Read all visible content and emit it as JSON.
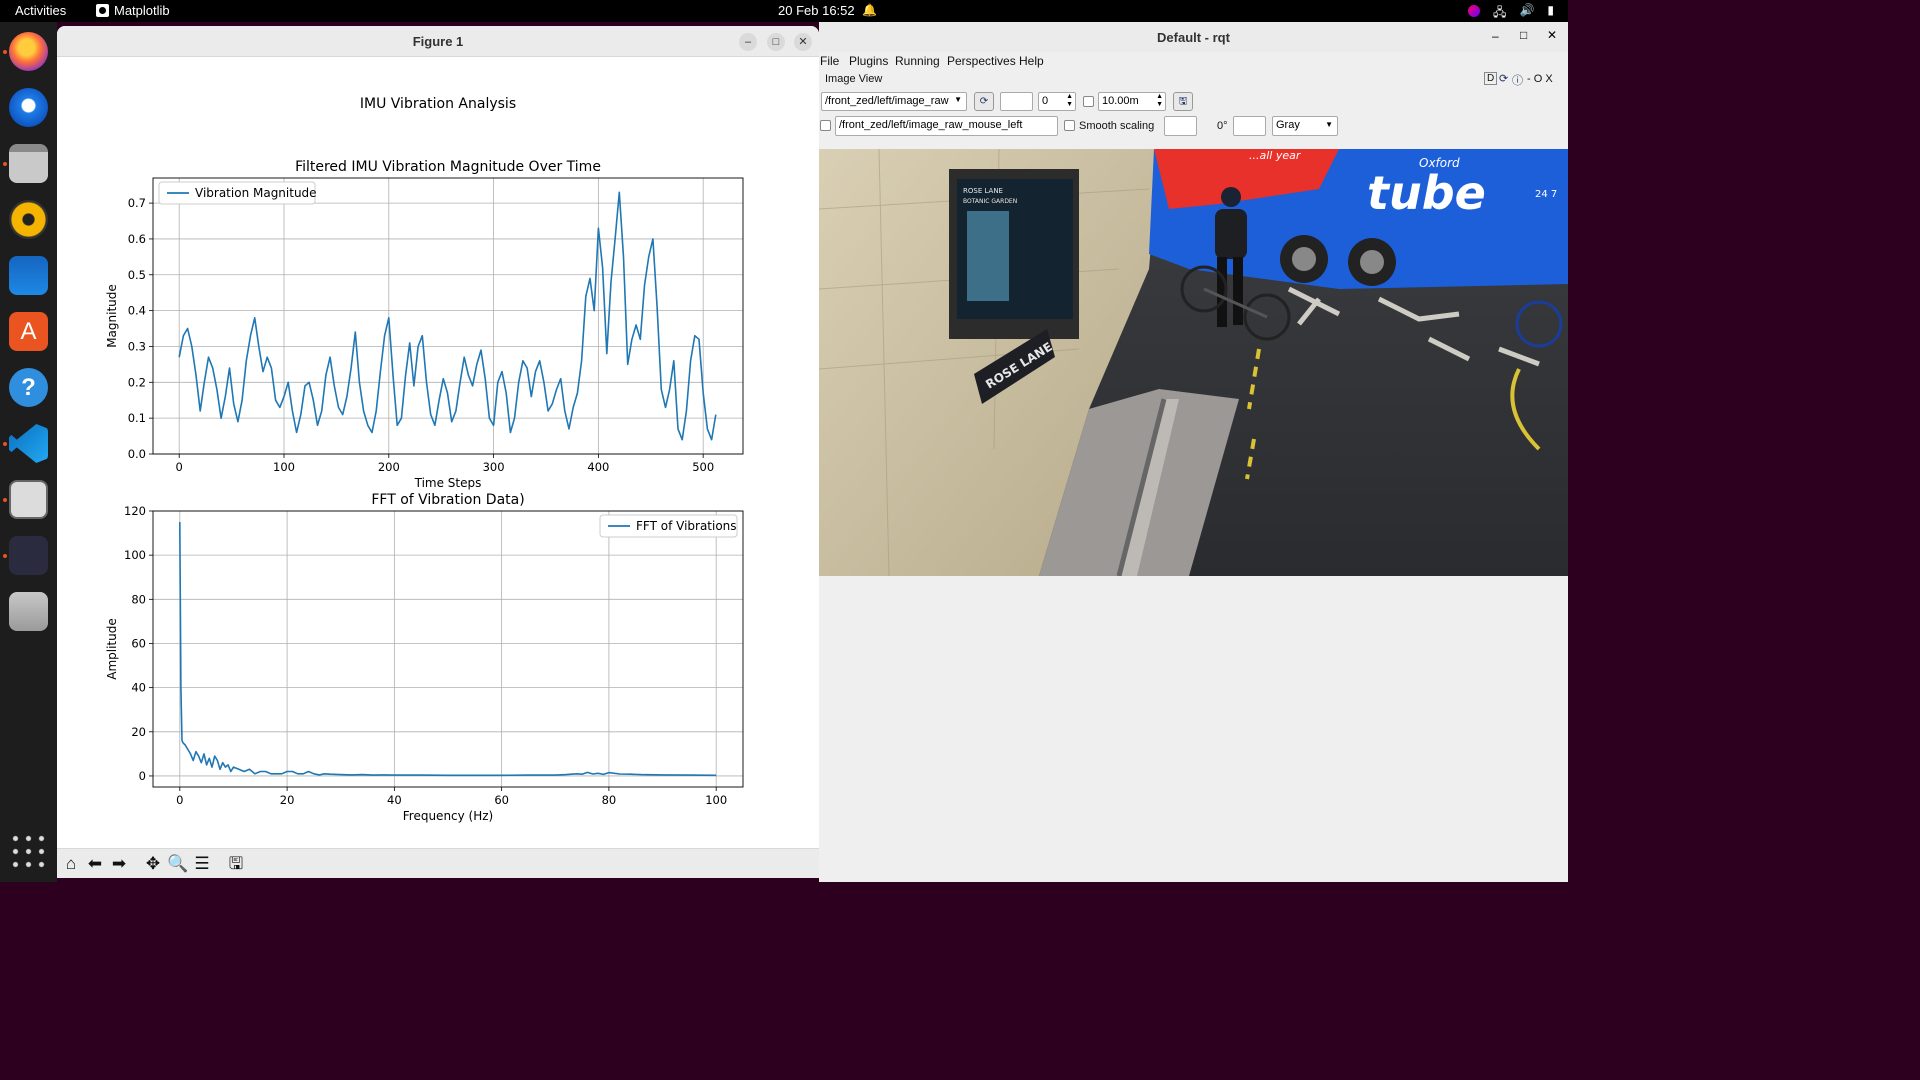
{
  "topbar": {
    "activities": "Activities",
    "app_name": "Matplotlib",
    "clock": "20 Feb  16:52"
  },
  "matplotlib_window": {
    "title": "Figure 1",
    "suptitle": "IMU Vibration Analysis",
    "toolbar_icons": [
      "home-icon",
      "back-arrow-icon",
      "forward-arrow-icon",
      "pan-icon",
      "zoom-icon",
      "configure-subplots-icon",
      "save-icon"
    ]
  },
  "chart_data": [
    {
      "type": "line",
      "title": "Filtered IMU Vibration Magnitude Over Time",
      "xlabel": "Time Steps",
      "ylabel": "Magnitude",
      "xlim": [
        -25,
        538
      ],
      "ylim": [
        0.0,
        0.77
      ],
      "xticks": [
        0,
        100,
        200,
        300,
        400,
        500
      ],
      "xtick_labels": [
        "0",
        "100",
        "200",
        "300",
        "400",
        "500"
      ],
      "yticks": [
        0.0,
        0.1,
        0.2,
        0.3,
        0.4,
        0.5,
        0.6,
        0.7
      ],
      "ytick_labels": [
        "0.0",
        "0.1",
        "0.2",
        "0.3",
        "0.4",
        "0.5",
        "0.6",
        "0.7"
      ],
      "grid": true,
      "legend_position": "top-left",
      "color": "#1f77b4",
      "series": [
        {
          "name": "Vibration Magnitude",
          "x": [
            0,
            4,
            8,
            12,
            16,
            20,
            24,
            28,
            32,
            36,
            40,
            44,
            48,
            52,
            56,
            60,
            64,
            68,
            72,
            76,
            80,
            84,
            88,
            92,
            96,
            100,
            104,
            108,
            112,
            116,
            120,
            124,
            128,
            132,
            136,
            140,
            144,
            148,
            152,
            156,
            160,
            164,
            168,
            172,
            176,
            180,
            184,
            188,
            192,
            196,
            200,
            204,
            208,
            212,
            216,
            220,
            224,
            228,
            232,
            236,
            240,
            244,
            248,
            252,
            256,
            260,
            264,
            268,
            272,
            276,
            280,
            284,
            288,
            292,
            296,
            300,
            304,
            308,
            312,
            316,
            320,
            324,
            328,
            332,
            336,
            340,
            344,
            348,
            352,
            356,
            360,
            364,
            368,
            372,
            376,
            380,
            384,
            388,
            392,
            396,
            400,
            404,
            408,
            412,
            416,
            420,
            424,
            428,
            432,
            436,
            440,
            444,
            448,
            452,
            456,
            460,
            464,
            468,
            472,
            476,
            480,
            484,
            488,
            492,
            496,
            500,
            504,
            508,
            512
          ],
          "y": [
            0.27,
            0.33,
            0.35,
            0.3,
            0.22,
            0.12,
            0.2,
            0.27,
            0.24,
            0.18,
            0.1,
            0.16,
            0.24,
            0.14,
            0.09,
            0.15,
            0.26,
            0.33,
            0.38,
            0.3,
            0.23,
            0.27,
            0.24,
            0.15,
            0.13,
            0.16,
            0.2,
            0.12,
            0.06,
            0.11,
            0.19,
            0.2,
            0.15,
            0.08,
            0.12,
            0.22,
            0.27,
            0.19,
            0.13,
            0.11,
            0.16,
            0.24,
            0.34,
            0.2,
            0.12,
            0.08,
            0.06,
            0.12,
            0.23,
            0.33,
            0.38,
            0.22,
            0.08,
            0.1,
            0.22,
            0.31,
            0.19,
            0.3,
            0.33,
            0.2,
            0.11,
            0.08,
            0.15,
            0.21,
            0.17,
            0.09,
            0.12,
            0.2,
            0.27,
            0.22,
            0.19,
            0.25,
            0.29,
            0.21,
            0.1,
            0.08,
            0.2,
            0.23,
            0.17,
            0.06,
            0.1,
            0.2,
            0.26,
            0.24,
            0.16,
            0.23,
            0.26,
            0.2,
            0.12,
            0.14,
            0.18,
            0.21,
            0.12,
            0.07,
            0.13,
            0.17,
            0.26,
            0.44,
            0.49,
            0.4,
            0.63,
            0.52,
            0.28,
            0.48,
            0.6,
            0.73,
            0.55,
            0.25,
            0.32,
            0.36,
            0.32,
            0.47,
            0.55,
            0.6,
            0.41,
            0.18,
            0.13,
            0.18,
            0.26,
            0.07,
            0.04,
            0.12,
            0.26,
            0.33,
            0.32,
            0.17,
            0.07,
            0.04,
            0.11
          ]
        }
      ]
    },
    {
      "type": "line",
      "title": "FFT of Vibration Data)",
      "xlabel": "Frequency (Hz)",
      "ylabel": "Amplitude",
      "xlim": [
        -5,
        105
      ],
      "ylim": [
        -5,
        120
      ],
      "xticks": [
        0,
        20,
        40,
        60,
        80,
        100
      ],
      "xtick_labels": [
        "0",
        "20",
        "40",
        "60",
        "80",
        "100"
      ],
      "yticks": [
        0,
        20,
        40,
        60,
        80,
        100,
        120
      ],
      "ytick_labels": [
        "0",
        "20",
        "40",
        "60",
        "80",
        "100",
        "120"
      ],
      "grid": true,
      "legend_position": "top-right",
      "color": "#1f77b4",
      "series": [
        {
          "name": "FFT of Vibrations",
          "x": [
            0,
            0.2,
            0.4,
            0.6,
            1,
            1.5,
            2,
            2.5,
            3,
            3.5,
            4,
            4.5,
            5,
            5.5,
            6,
            6.5,
            7,
            7.5,
            8,
            8.5,
            9,
            9.5,
            10,
            11,
            12,
            13,
            14,
            15,
            16,
            17,
            18,
            19,
            20,
            21,
            22,
            23,
            24,
            25,
            26,
            27,
            28,
            30,
            32,
            34,
            36,
            38,
            40,
            45,
            50,
            55,
            60,
            65,
            70,
            72,
            74,
            75,
            76,
            77,
            78,
            79,
            80,
            82,
            84,
            86,
            90,
            95,
            100
          ],
          "y": [
            115,
            40,
            16,
            15,
            14,
            12,
            10,
            7,
            11,
            9,
            6,
            10,
            5,
            8,
            4,
            9,
            7,
            3,
            6,
            4,
            5,
            2,
            4,
            3,
            2,
            3,
            1,
            2,
            2,
            1,
            1,
            1,
            2,
            2,
            1,
            1,
            2,
            1,
            0.5,
            1,
            0.8,
            0.6,
            0.5,
            0.6,
            0.4,
            0.5,
            0.4,
            0.4,
            0.3,
            0.3,
            0.3,
            0.4,
            0.4,
            0.6,
            1,
            0.8,
            1.6,
            0.9,
            1.2,
            0.7,
            1.5,
            0.9,
            0.8,
            0.6,
            0.5,
            0.4,
            0.3
          ]
        }
      ]
    }
  ],
  "rqt_window": {
    "title": "Default - rqt",
    "menus": [
      "File",
      "Plugins",
      "Running",
      "Perspectives",
      "Help"
    ],
    "plugin_title": "Image View",
    "plugin_controls": "D",
    "plugin_right": "- O X",
    "topic": "/front_zed/left/image_raw",
    "spin_value": "0",
    "distance_value": "10.00m",
    "mouse_topic": "/front_zed/left/image_raw_mouse_left",
    "smooth_scaling_label": "Smooth scaling",
    "rotation": "0°",
    "color_scheme": "Gray",
    "camera_scene": {
      "sign_title": "ROSE LANE",
      "sign_sub": "BOTANIC GARDEN",
      "street_sign": "ROSE LANE",
      "bus_brand": "tube",
      "bus_brand_small": "Oxford",
      "bus_slogan": "...all year",
      "bus_number": "24 7"
    }
  }
}
